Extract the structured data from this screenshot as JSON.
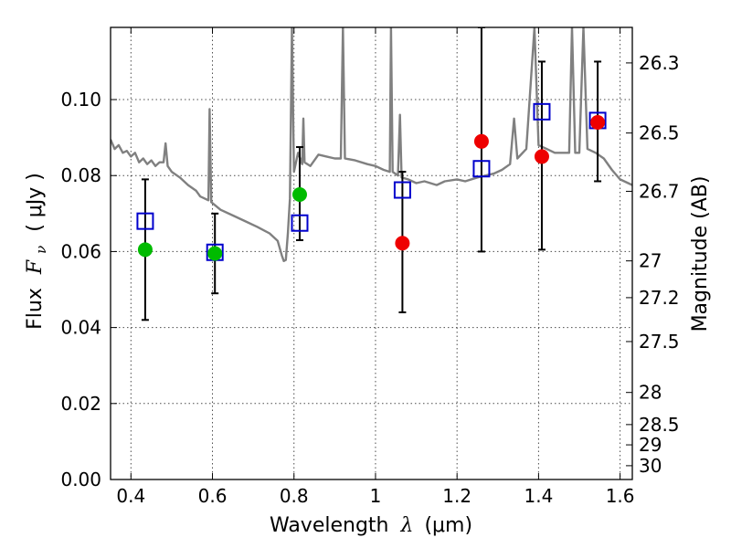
{
  "chart_data": {
    "type": "scatter",
    "title": "",
    "xlabel": {
      "prefix": "Wavelength",
      "symbol": "λ",
      "unit": "(μm)"
    },
    "ylabel": {
      "prefix": "Flux",
      "symbol": "F",
      "subscript": "ν",
      "unit": "( μJy )"
    },
    "y2label": "Magnitude (AB)",
    "xlim": [
      0.35,
      1.63
    ],
    "ylim": [
      0.0,
      0.119
    ],
    "grid": true,
    "x_ticks": [
      {
        "value": 0.4,
        "label": "0.4"
      },
      {
        "value": 0.6,
        "label": "0.6"
      },
      {
        "value": 0.8,
        "label": "0.8"
      },
      {
        "value": 1.0,
        "label": "1"
      },
      {
        "value": 1.2,
        "label": "1.2"
      },
      {
        "value": 1.4,
        "label": "1.4"
      },
      {
        "value": 1.6,
        "label": "1.6"
      }
    ],
    "y_ticks": [
      {
        "value": 0.0,
        "label": "0.00"
      },
      {
        "value": 0.02,
        "label": "0.02"
      },
      {
        "value": 0.04,
        "label": "0.04"
      },
      {
        "value": 0.06,
        "label": "0.06"
      },
      {
        "value": 0.08,
        "label": "0.08"
      },
      {
        "value": 0.1,
        "label": "0.10"
      }
    ],
    "y2_ticks": [
      {
        "value": 26.3,
        "label": "26.3"
      },
      {
        "value": 26.5,
        "label": "26.5"
      },
      {
        "value": 26.7,
        "label": "26.7"
      },
      {
        "value": 27.0,
        "label": "27"
      },
      {
        "value": 27.2,
        "label": "27.2"
      },
      {
        "value": 27.5,
        "label": "27.5"
      },
      {
        "value": 28.0,
        "label": "28"
      },
      {
        "value": 28.5,
        "label": "28.5"
      },
      {
        "value": 29.0,
        "label": "29"
      },
      {
        "value": 30.0,
        "label": "30"
      }
    ],
    "observed_points": [
      {
        "x": 0.435,
        "y": 0.0605,
        "color": "#00bb00",
        "err_low": 0.042,
        "err_high": 0.079
      },
      {
        "x": 0.606,
        "y": 0.0595,
        "color": "#00bb00",
        "err_low": 0.049,
        "err_high": 0.07
      },
      {
        "x": 0.814,
        "y": 0.075,
        "color": "#00bb00",
        "err_low": 0.063,
        "err_high": 0.0875
      },
      {
        "x": 1.066,
        "y": 0.0622,
        "color": "#ee0000",
        "err_low": 0.044,
        "err_high": 0.081
      },
      {
        "x": 1.26,
        "y": 0.089,
        "color": "#ee0000",
        "err_low": 0.06,
        "err_high": 0.119
      },
      {
        "x": 1.408,
        "y": 0.085,
        "color": "#ee0000",
        "err_low": 0.0605,
        "err_high": 0.11
      },
      {
        "x": 1.545,
        "y": 0.094,
        "color": "#ee0000",
        "err_low": 0.0785,
        "err_high": 0.11
      }
    ],
    "model_points": [
      {
        "x": 0.435,
        "y": 0.068
      },
      {
        "x": 0.606,
        "y": 0.0598
      },
      {
        "x": 0.814,
        "y": 0.0675
      },
      {
        "x": 1.066,
        "y": 0.0762
      },
      {
        "x": 1.26,
        "y": 0.0818
      },
      {
        "x": 1.408,
        "y": 0.0968
      },
      {
        "x": 1.545,
        "y": 0.0945
      }
    ],
    "model_point_color": "#0000cc",
    "spectrum_color": "#808080",
    "spectrum": [
      [
        0.35,
        0.0895
      ],
      [
        0.36,
        0.087
      ],
      [
        0.37,
        0.088
      ],
      [
        0.38,
        0.086
      ],
      [
        0.39,
        0.0865
      ],
      [
        0.4,
        0.085
      ],
      [
        0.41,
        0.086
      ],
      [
        0.42,
        0.0835
      ],
      [
        0.43,
        0.0845
      ],
      [
        0.44,
        0.083
      ],
      [
        0.45,
        0.084
      ],
      [
        0.46,
        0.0825
      ],
      [
        0.47,
        0.0835
      ],
      [
        0.48,
        0.0835
      ],
      [
        0.485,
        0.0885
      ],
      [
        0.49,
        0.0825
      ],
      [
        0.5,
        0.081
      ],
      [
        0.52,
        0.0795
      ],
      [
        0.54,
        0.0775
      ],
      [
        0.56,
        0.076
      ],
      [
        0.57,
        0.0745
      ],
      [
        0.58,
        0.074
      ],
      [
        0.59,
        0.0735
      ],
      [
        0.593,
        0.0975
      ],
      [
        0.597,
        0.073
      ],
      [
        0.62,
        0.071
      ],
      [
        0.65,
        0.0695
      ],
      [
        0.68,
        0.068
      ],
      [
        0.71,
        0.0665
      ],
      [
        0.74,
        0.0648
      ],
      [
        0.76,
        0.0628
      ],
      [
        0.77,
        0.059
      ],
      [
        0.775,
        0.0575
      ],
      [
        0.78,
        0.0578
      ],
      [
        0.785,
        0.065
      ],
      [
        0.79,
        0.074
      ],
      [
        0.795,
        0.119
      ],
      [
        0.8,
        0.081
      ],
      [
        0.81,
        0.086
      ],
      [
        0.82,
        0.083
      ],
      [
        0.823,
        0.095
      ],
      [
        0.826,
        0.0835
      ],
      [
        0.84,
        0.0825
      ],
      [
        0.86,
        0.0855
      ],
      [
        0.88,
        0.085
      ],
      [
        0.9,
        0.0845
      ],
      [
        0.915,
        0.0845
      ],
      [
        0.92,
        0.119
      ],
      [
        0.925,
        0.0845
      ],
      [
        0.95,
        0.084
      ],
      [
        0.98,
        0.083
      ],
      [
        1.0,
        0.0825
      ],
      [
        1.02,
        0.0815
      ],
      [
        1.035,
        0.081
      ],
      [
        1.038,
        0.119
      ],
      [
        1.042,
        0.081
      ],
      [
        1.055,
        0.08
      ],
      [
        1.06,
        0.096
      ],
      [
        1.064,
        0.0795
      ],
      [
        1.08,
        0.079
      ],
      [
        1.1,
        0.078
      ],
      [
        1.12,
        0.0785
      ],
      [
        1.15,
        0.0775
      ],
      [
        1.17,
        0.0785
      ],
      [
        1.2,
        0.079
      ],
      [
        1.22,
        0.0785
      ],
      [
        1.25,
        0.0795
      ],
      [
        1.27,
        0.08
      ],
      [
        1.29,
        0.0805
      ],
      [
        1.31,
        0.0815
      ],
      [
        1.33,
        0.083
      ],
      [
        1.34,
        0.095
      ],
      [
        1.348,
        0.0845
      ],
      [
        1.37,
        0.087
      ],
      [
        1.39,
        0.119
      ],
      [
        1.4,
        0.088
      ],
      [
        1.42,
        0.087
      ],
      [
        1.44,
        0.086
      ],
      [
        1.46,
        0.086
      ],
      [
        1.475,
        0.086
      ],
      [
        1.482,
        0.119
      ],
      [
        1.49,
        0.086
      ],
      [
        1.5,
        0.086
      ],
      [
        1.51,
        0.119
      ],
      [
        1.52,
        0.087
      ],
      [
        1.54,
        0.086
      ],
      [
        1.56,
        0.0845
      ],
      [
        1.58,
        0.0815
      ],
      [
        1.6,
        0.079
      ],
      [
        1.63,
        0.0775
      ]
    ]
  }
}
